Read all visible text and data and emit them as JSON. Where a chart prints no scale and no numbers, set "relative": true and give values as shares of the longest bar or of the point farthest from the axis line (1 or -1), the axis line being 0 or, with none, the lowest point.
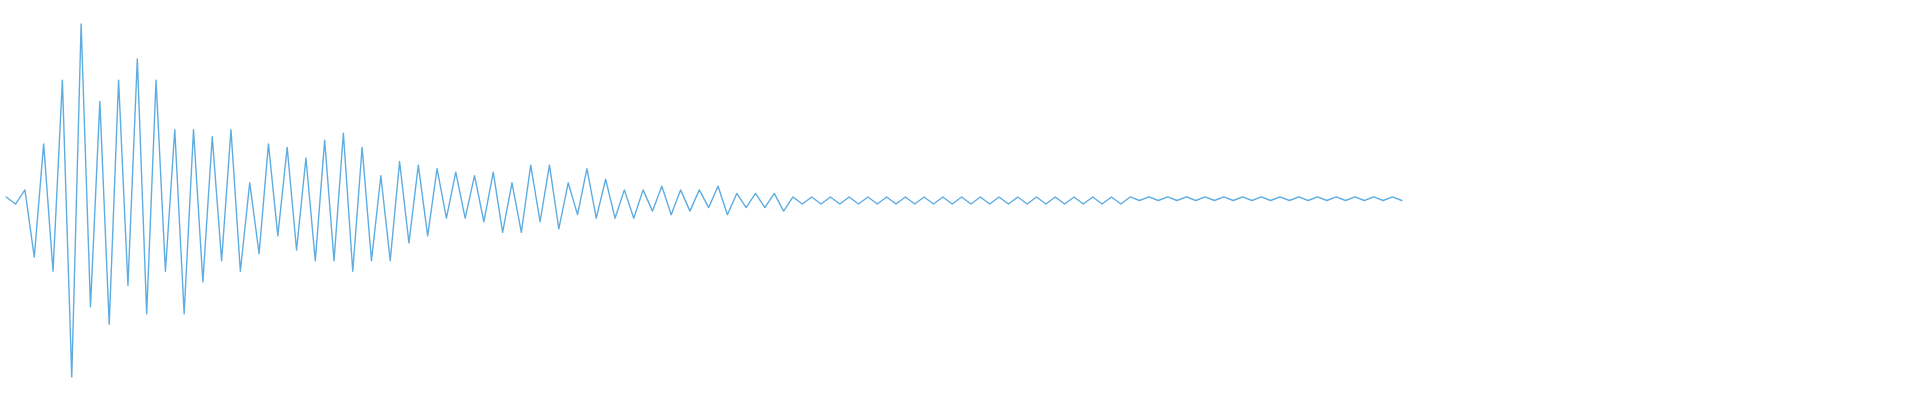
{
  "chart_data": {
    "type": "line",
    "relative": true,
    "categories": [
      null,
      null,
      null,
      null,
      null,
      null,
      null,
      null,
      null,
      null,
      null,
      null,
      null,
      null,
      null,
      null,
      null,
      null,
      null,
      null,
      null,
      null,
      null,
      null,
      null,
      null,
      null,
      null,
      null,
      null,
      null,
      null,
      null,
      null,
      null,
      null,
      null,
      null,
      null,
      null,
      null,
      null,
      null,
      null,
      null,
      null,
      null,
      null,
      null,
      null,
      null,
      null,
      null,
      null,
      null,
      null,
      null,
      null,
      null,
      null,
      null,
      null,
      null,
      null,
      null,
      null,
      null,
      null,
      null,
      null,
      null,
      null,
      null,
      null,
      null,
      null,
      null,
      null,
      null,
      null,
      null,
      null,
      null,
      null,
      null,
      null,
      null,
      null,
      null,
      null,
      null,
      null,
      null,
      null,
      null,
      null,
      null,
      null,
      null,
      null,
      null,
      null,
      null,
      null,
      null,
      null,
      null,
      null,
      null,
      null,
      null,
      null,
      null,
      null,
      null,
      null,
      null,
      null,
      null,
      null,
      null,
      null,
      null,
      null,
      null,
      null,
      null,
      null,
      null,
      null,
      null,
      null,
      null,
      null,
      null,
      null,
      null,
      null,
      null,
      null,
      null,
      null,
      null,
      null,
      null,
      null,
      null,
      null,
      null,
      null
    ],
    "series": [
      {
        "color": "#5dade2",
        "values": [
          0.51,
          0.49,
          0.53,
          0.34,
          0.66,
          0.3,
          0.84,
          0.0,
          1.0,
          0.2,
          0.78,
          0.15,
          0.84,
          0.26,
          0.9,
          0.18,
          0.84,
          0.3,
          0.7,
          0.18,
          0.7,
          0.27,
          0.68,
          0.33,
          0.7,
          0.3,
          0.55,
          0.35,
          0.66,
          0.4,
          0.65,
          0.36,
          0.62,
          0.33,
          0.67,
          0.33,
          0.69,
          0.3,
          0.65,
          0.33,
          0.57,
          0.33,
          0.61,
          0.38,
          0.6,
          0.4,
          0.59,
          0.45,
          0.58,
          0.45,
          0.57,
          0.44,
          0.58,
          0.41,
          0.55,
          0.41,
          0.6,
          0.44,
          0.6,
          0.42,
          0.55,
          0.46,
          0.59,
          0.45,
          0.56,
          0.45,
          0.53,
          0.45,
          0.53,
          0.47,
          0.54,
          0.46,
          0.53,
          0.47,
          0.53,
          0.48,
          0.54,
          0.46,
          0.52,
          0.48,
          0.52,
          0.48,
          0.52,
          0.47,
          0.51,
          0.49,
          0.51,
          0.49,
          0.51,
          0.49,
          0.51,
          0.49,
          0.51,
          0.49,
          0.51,
          0.49,
          0.51,
          0.49,
          0.51,
          0.49,
          0.51,
          0.49,
          0.51,
          0.49,
          0.51,
          0.49,
          0.51,
          0.49,
          0.51,
          0.49,
          0.51,
          0.49,
          0.51,
          0.49,
          0.51,
          0.49,
          0.51,
          0.49,
          0.51,
          0.49,
          0.51,
          0.5,
          0.51,
          0.5,
          0.51,
          0.5,
          0.51,
          0.5,
          0.51,
          0.5,
          0.51,
          0.5,
          0.51,
          0.5,
          0.51,
          0.5,
          0.51,
          0.5,
          0.51,
          0.5,
          0.51,
          0.5,
          0.51,
          0.5,
          0.51,
          0.5,
          0.51,
          0.5,
          0.51,
          0.5
        ]
      }
    ]
  }
}
